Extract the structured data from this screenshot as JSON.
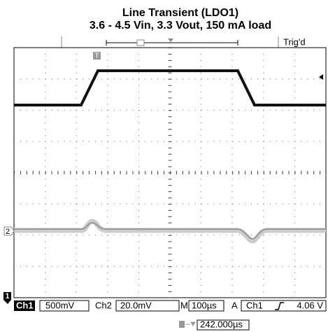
{
  "header": {
    "title": "Line Transient (LDO1)",
    "subtitle": "3.6 - 4.5 Vin, 3.3 Vout, 150 mA load"
  },
  "trigger_state": "Trig'd",
  "markers": {
    "trigger": "T",
    "ch2": "2",
    "ch1": "1"
  },
  "status_bar": {
    "ch1_label": "Ch1",
    "ch1_scale": "500mV",
    "ch2_label": "Ch2",
    "ch2_scale": "20.0mV",
    "time_label": "M",
    "time_scale": "100µs",
    "trigger_mode": "A",
    "trigger_source": "Ch1",
    "trigger_level": "4.06 V"
  },
  "time_position": "242.000µs"
}
